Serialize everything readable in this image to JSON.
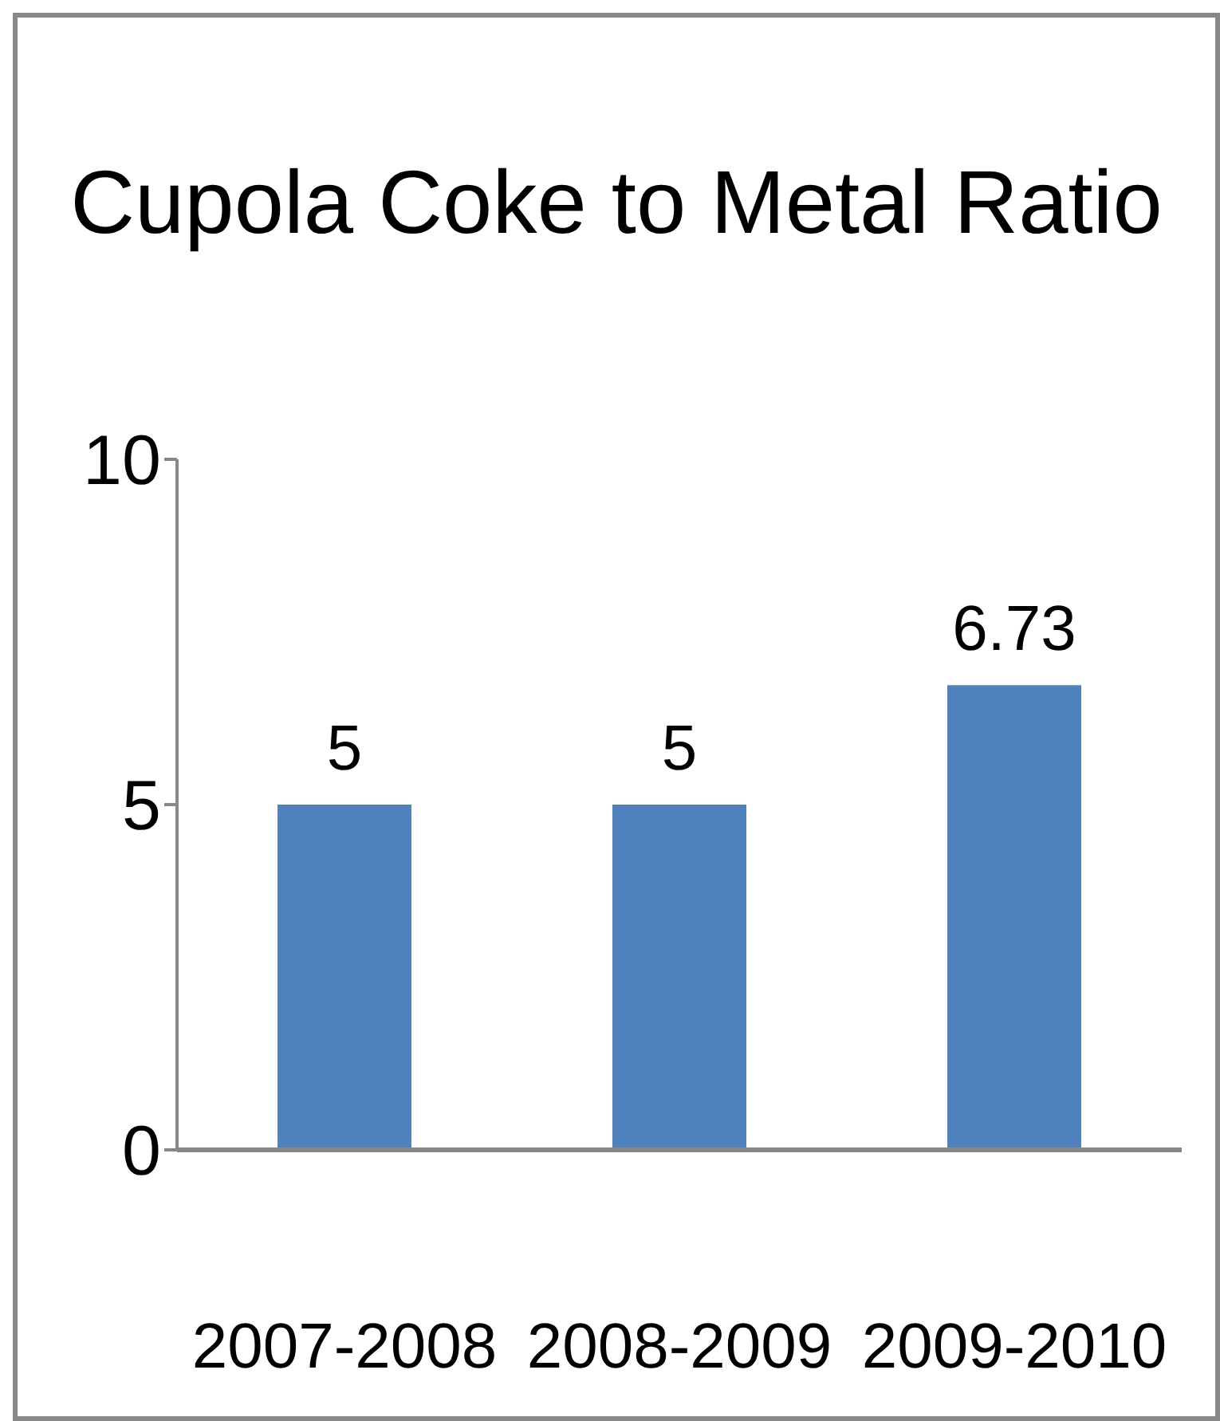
{
  "chart_data": {
    "type": "bar",
    "title": "Cupola Coke to Metal Ratio",
    "categories": [
      "2007-2008",
      "2008-2009",
      "2009-2010"
    ],
    "values": [
      5,
      5,
      6.73
    ],
    "color": "#4f81bd",
    "ylim": [
      0,
      10
    ],
    "yticks": [
      0,
      5,
      10
    ],
    "data_labels": true,
    "grid": false,
    "legend": false
  }
}
